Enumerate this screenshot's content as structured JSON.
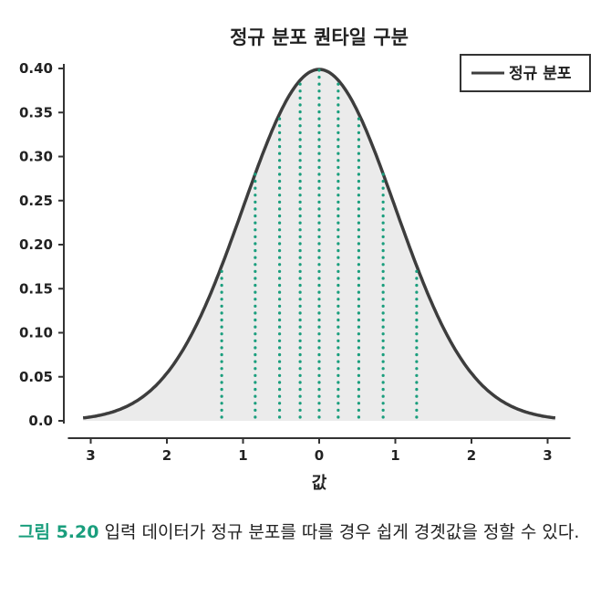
{
  "chart_data": {
    "type": "area",
    "title": "정규 분포 퀀타일 구분",
    "xlabel": "값",
    "ylabel": "",
    "xlim": [
      -3.1,
      3.1
    ],
    "ylim": [
      0,
      0.4
    ],
    "x_ticks": [
      -3,
      -2,
      -1,
      0,
      1,
      2,
      3
    ],
    "x_tick_labels": [
      "3",
      "2",
      "1",
      "0",
      "1",
      "2",
      "3"
    ],
    "y_ticks": [
      0.0,
      0.05,
      0.1,
      0.15,
      0.2,
      0.25,
      0.3,
      0.35,
      0.4
    ],
    "y_tick_labels": [
      "0.0",
      "0.05",
      "0.10",
      "0.15",
      "0.20",
      "0.25",
      "0.30",
      "0.35",
      "0.40"
    ],
    "series": [
      {
        "name": "정규 분포",
        "color": "#3d3d3d",
        "fill": "#ebebeb",
        "x": [
          -3.0,
          -2.5,
          -2.0,
          -1.5,
          -1.0,
          -0.5,
          0.0,
          0.5,
          1.0,
          1.5,
          2.0,
          2.5,
          3.0
        ],
        "y": [
          0.004,
          0.018,
          0.054,
          0.13,
          0.242,
          0.352,
          0.399,
          0.352,
          0.242,
          0.13,
          0.054,
          0.018,
          0.004
        ]
      }
    ],
    "quantile_lines": {
      "color": "#1a9e7d",
      "x": [
        -1.28,
        -0.84,
        -0.52,
        -0.25,
        0.0,
        0.25,
        0.52,
        0.84,
        1.28
      ]
    },
    "legend": {
      "position": "top-right",
      "entries": [
        "정규 분포"
      ]
    },
    "grid": false
  },
  "caption": {
    "label": "그림 5.20",
    "text": "입력 데이터가 정규 분포를 따를 경우 쉽게 경곗값을 정할 수 있다."
  }
}
